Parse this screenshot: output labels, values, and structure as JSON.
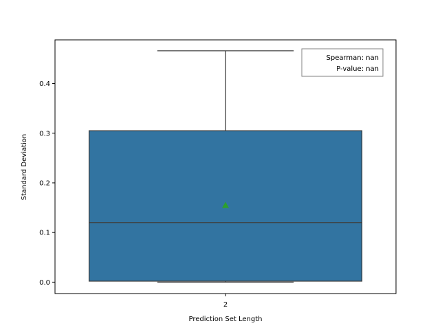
{
  "chart_data": {
    "type": "box",
    "xlabel": "Prediction Set Length",
    "ylabel": "Standard Deviation",
    "categories": [
      "2"
    ],
    "boxes": [
      {
        "category": "2",
        "whisker_low": 0.0,
        "q1": 0.002,
        "median": 0.12,
        "q3": 0.305,
        "whisker_high": 0.466,
        "mean": 0.155
      }
    ],
    "ylim": [
      -0.023,
      0.488
    ],
    "yticks": [
      0.0,
      0.1,
      0.2,
      0.3,
      0.4
    ],
    "ytick_labels": [
      "0.0",
      "0.1",
      "0.2",
      "0.3",
      "0.4"
    ],
    "grid": false,
    "annotation": {
      "line1": "Spearman: nan",
      "line2": "P-value: nan",
      "placement": "top-right"
    },
    "colors": {
      "box_fill": "#3274a1",
      "box_edge": "#3f3f3f",
      "mean_marker": "#2ca02c"
    }
  }
}
